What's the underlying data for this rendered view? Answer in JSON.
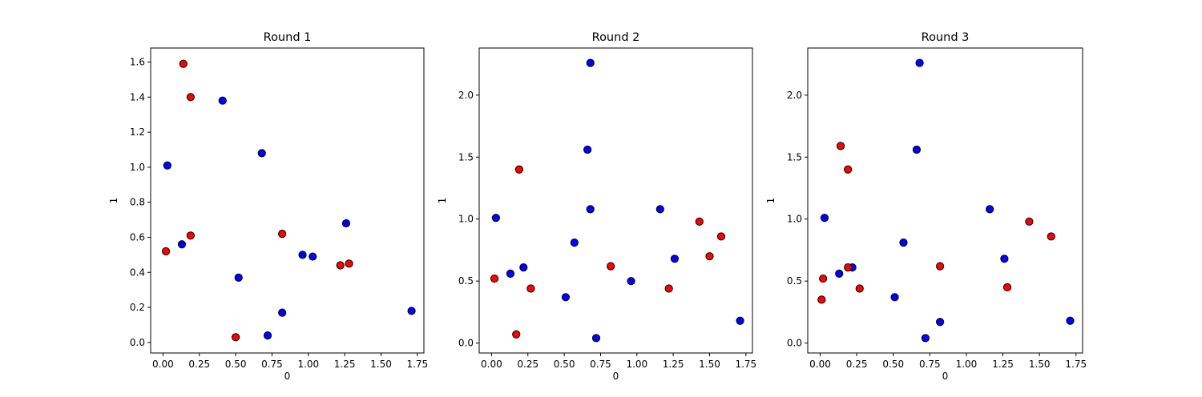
{
  "colors": {
    "red": "#ff0000",
    "blue": "#0000ff"
  },
  "chart_data": [
    {
      "type": "scatter",
      "title": "Round 1",
      "xlabel": "0",
      "ylabel": "1",
      "xlim": [
        -0.085,
        1.795
      ],
      "ylim": [
        -0.06,
        1.68
      ],
      "xticks": [
        "0.00",
        "0.25",
        "0.50",
        "0.75",
        "1.00",
        "1.25",
        "1.50",
        "1.75"
      ],
      "yticks": [
        "0.0",
        "0.2",
        "0.4",
        "0.6",
        "0.8",
        "1.0",
        "1.2",
        "1.4",
        "1.6"
      ],
      "grid": false,
      "points": [
        {
          "x": 0.14,
          "y": 1.59,
          "color": "red"
        },
        {
          "x": 0.19,
          "y": 1.4,
          "color": "red"
        },
        {
          "x": 0.41,
          "y": 1.38,
          "color": "blue"
        },
        {
          "x": 0.68,
          "y": 1.08,
          "color": "blue"
        },
        {
          "x": 0.03,
          "y": 1.01,
          "color": "blue"
        },
        {
          "x": 1.26,
          "y": 0.68,
          "color": "blue"
        },
        {
          "x": 0.82,
          "y": 0.62,
          "color": "red"
        },
        {
          "x": 0.19,
          "y": 0.61,
          "color": "red"
        },
        {
          "x": 0.13,
          "y": 0.56,
          "color": "blue"
        },
        {
          "x": 0.02,
          "y": 0.52,
          "color": "red"
        },
        {
          "x": 0.96,
          "y": 0.5,
          "color": "blue"
        },
        {
          "x": 1.03,
          "y": 0.49,
          "color": "blue"
        },
        {
          "x": 1.28,
          "y": 0.45,
          "color": "red"
        },
        {
          "x": 1.22,
          "y": 0.44,
          "color": "red"
        },
        {
          "x": 0.52,
          "y": 0.37,
          "color": "blue"
        },
        {
          "x": 0.82,
          "y": 0.17,
          "color": "blue"
        },
        {
          "x": 1.71,
          "y": 0.18,
          "color": "blue"
        },
        {
          "x": 0.72,
          "y": 0.04,
          "color": "blue"
        },
        {
          "x": 0.5,
          "y": 0.03,
          "color": "red"
        }
      ]
    },
    {
      "type": "scatter",
      "title": "Round 2",
      "xlabel": "0",
      "ylabel": "1",
      "xlim": [
        -0.085,
        1.795
      ],
      "ylim": [
        -0.08,
        2.38
      ],
      "xticks": [
        "0.00",
        "0.25",
        "0.50",
        "0.75",
        "1.00",
        "1.25",
        "1.50",
        "1.75"
      ],
      "yticks": [
        "0.0",
        "0.5",
        "1.0",
        "1.5",
        "2.0"
      ],
      "grid": false,
      "points": [
        {
          "x": 0.68,
          "y": 2.26,
          "color": "blue"
        },
        {
          "x": 0.66,
          "y": 1.56,
          "color": "blue"
        },
        {
          "x": 0.19,
          "y": 1.4,
          "color": "red"
        },
        {
          "x": 0.68,
          "y": 1.08,
          "color": "blue"
        },
        {
          "x": 1.16,
          "y": 1.08,
          "color": "blue"
        },
        {
          "x": 0.03,
          "y": 1.01,
          "color": "blue"
        },
        {
          "x": 1.43,
          "y": 0.98,
          "color": "red"
        },
        {
          "x": 1.58,
          "y": 0.86,
          "color": "red"
        },
        {
          "x": 0.57,
          "y": 0.81,
          "color": "blue"
        },
        {
          "x": 1.5,
          "y": 0.7,
          "color": "red"
        },
        {
          "x": 1.26,
          "y": 0.68,
          "color": "blue"
        },
        {
          "x": 0.82,
          "y": 0.62,
          "color": "red"
        },
        {
          "x": 0.22,
          "y": 0.61,
          "color": "blue"
        },
        {
          "x": 0.13,
          "y": 0.56,
          "color": "blue"
        },
        {
          "x": 0.02,
          "y": 0.52,
          "color": "red"
        },
        {
          "x": 0.96,
          "y": 0.5,
          "color": "blue"
        },
        {
          "x": 0.27,
          "y": 0.44,
          "color": "red"
        },
        {
          "x": 1.22,
          "y": 0.44,
          "color": "red"
        },
        {
          "x": 0.51,
          "y": 0.37,
          "color": "blue"
        },
        {
          "x": 1.71,
          "y": 0.18,
          "color": "blue"
        },
        {
          "x": 0.17,
          "y": 0.07,
          "color": "red"
        },
        {
          "x": 0.72,
          "y": 0.04,
          "color": "blue"
        }
      ]
    },
    {
      "type": "scatter",
      "title": "Round 3",
      "xlabel": "0",
      "ylabel": "1",
      "xlim": [
        -0.085,
        1.795
      ],
      "ylim": [
        -0.08,
        2.38
      ],
      "xticks": [
        "0.00",
        "0.25",
        "0.50",
        "0.75",
        "1.00",
        "1.25",
        "1.50",
        "1.75"
      ],
      "yticks": [
        "0.0",
        "0.5",
        "1.0",
        "1.5",
        "2.0"
      ],
      "grid": false,
      "points": [
        {
          "x": 0.68,
          "y": 2.26,
          "color": "blue"
        },
        {
          "x": 0.14,
          "y": 1.59,
          "color": "red"
        },
        {
          "x": 0.66,
          "y": 1.56,
          "color": "blue"
        },
        {
          "x": 0.19,
          "y": 1.4,
          "color": "red"
        },
        {
          "x": 1.16,
          "y": 1.08,
          "color": "blue"
        },
        {
          "x": 0.03,
          "y": 1.01,
          "color": "blue"
        },
        {
          "x": 1.43,
          "y": 0.98,
          "color": "red"
        },
        {
          "x": 1.58,
          "y": 0.86,
          "color": "red"
        },
        {
          "x": 0.57,
          "y": 0.81,
          "color": "blue"
        },
        {
          "x": 1.26,
          "y": 0.68,
          "color": "blue"
        },
        {
          "x": 0.82,
          "y": 0.62,
          "color": "red"
        },
        {
          "x": 0.22,
          "y": 0.61,
          "color": "blue"
        },
        {
          "x": 0.19,
          "y": 0.61,
          "color": "red"
        },
        {
          "x": 0.13,
          "y": 0.56,
          "color": "blue"
        },
        {
          "x": 0.02,
          "y": 0.52,
          "color": "red"
        },
        {
          "x": 1.28,
          "y": 0.45,
          "color": "red"
        },
        {
          "x": 0.27,
          "y": 0.44,
          "color": "red"
        },
        {
          "x": 0.51,
          "y": 0.37,
          "color": "blue"
        },
        {
          "x": 0.01,
          "y": 0.35,
          "color": "red"
        },
        {
          "x": 1.71,
          "y": 0.18,
          "color": "blue"
        },
        {
          "x": 0.82,
          "y": 0.17,
          "color": "blue"
        },
        {
          "x": 0.72,
          "y": 0.04,
          "color": "blue"
        }
      ]
    }
  ]
}
